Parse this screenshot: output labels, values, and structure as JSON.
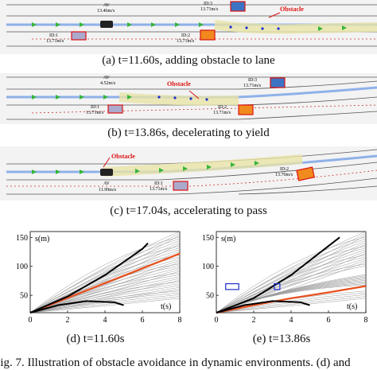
{
  "panels": [
    {
      "caption": "(a) t=11.60s, adding obstacle to lane",
      "av_label": "AV",
      "av_speed": "13.46m/s",
      "obstacle_label": "Obstacle",
      "vehicles": [
        {
          "id": "ID:3",
          "speed": "13.71m/s"
        },
        {
          "id": "ID:1",
          "speed": "13.71m/s"
        },
        {
          "id": "ID:2",
          "speed": "13.71m/s"
        }
      ]
    },
    {
      "caption": "(b) t=13.86s, decelerating to yield",
      "av_label": "AV",
      "av_speed": "4.52m/s",
      "obstacle_label": "Obstacle",
      "vehicles": [
        {
          "id": "ID:3",
          "speed": "13.71m/s"
        },
        {
          "id": "ID:1",
          "speed": "13.71m/s"
        },
        {
          "id": "ID:2",
          "speed": "13.71m/s"
        }
      ]
    },
    {
      "caption": "(c) t=17.04s, accelerating to pass",
      "av_label": "AV",
      "av_speed": "11.99m/s",
      "obstacle_label": "Obstacle",
      "vehicles": [
        {
          "id": "ID:2",
          "speed": "13.70m/s"
        },
        {
          "id": "ID:1",
          "speed": "13.71m/s"
        }
      ]
    }
  ],
  "plots": [
    {
      "caption": "(d) t=11.60s",
      "ylabel": "s(m)",
      "xlabel": "t(s)"
    },
    {
      "caption": "(e) t=13.86s",
      "ylabel": "s(m)",
      "xlabel": "t(s)"
    }
  ],
  "chart_data": [
    {
      "type": "line",
      "title": "(d) t=11.60s",
      "xlabel": "t(s)",
      "ylabel": "s(m)",
      "xlim": [
        0,
        8
      ],
      "ylim": [
        20,
        160
      ],
      "xticks": [
        0,
        2,
        4,
        6,
        8
      ],
      "yticks": [
        50,
        100,
        150
      ],
      "series": [
        {
          "role": "selected",
          "color": "#e8501e",
          "x": [
            0,
            8
          ],
          "y": [
            20,
            122
          ]
        },
        {
          "role": "upper-bound",
          "color": "#000000",
          "x": [
            0,
            2,
            4,
            6,
            6.3
          ],
          "y": [
            20,
            48,
            85,
            130,
            140
          ]
        },
        {
          "role": "lower-bound",
          "color": "#000000",
          "x": [
            0,
            1.5,
            3,
            4.5,
            5
          ],
          "y": [
            20,
            33,
            40,
            38,
            33
          ]
        }
      ]
    },
    {
      "type": "line",
      "title": "(e) t=13.86s",
      "xlabel": "t(s)",
      "ylabel": "s(m)",
      "xlim": [
        0,
        8
      ],
      "ylim": [
        20,
        160
      ],
      "xticks": [
        0,
        2,
        4,
        6,
        8
      ],
      "yticks": [
        50,
        100,
        150
      ],
      "series": [
        {
          "role": "selected",
          "color": "#e8501e",
          "x": [
            0,
            2,
            4,
            6,
            8
          ],
          "y": [
            20,
            33,
            45,
            55,
            66
          ]
        },
        {
          "role": "upper-bound",
          "color": "#000000",
          "x": [
            0,
            2,
            4,
            6,
            6.6
          ],
          "y": [
            20,
            45,
            85,
            135,
            150
          ]
        },
        {
          "role": "lower-bound",
          "color": "#000000",
          "x": [
            0,
            1.5,
            3,
            4.5,
            5
          ],
          "y": [
            20,
            33,
            40,
            38,
            33
          ]
        }
      ],
      "obstacles": [
        {
          "t": [
            0.5,
            1.2
          ],
          "s": [
            60,
            70
          ]
        },
        {
          "t": [
            3.1,
            3.4
          ],
          "s": [
            60,
            70
          ]
        }
      ]
    }
  ],
  "figure_caption": "Fig. 7.  Illustration of obstacle avoidance in dynamic environments. (d) and"
}
